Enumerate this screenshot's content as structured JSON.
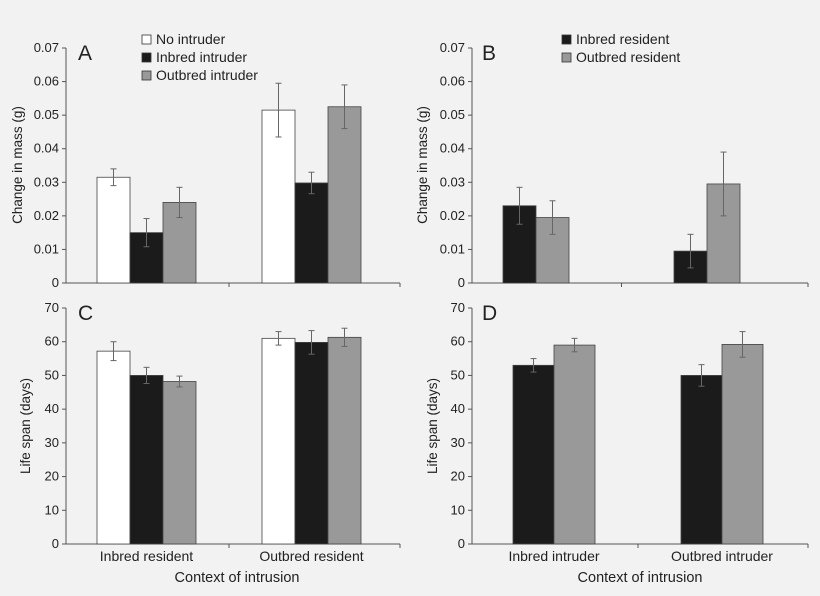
{
  "colors": {
    "background": "#f2f2f2",
    "no_intruder": "#ffffff",
    "inbred": "#1b1b1b",
    "outbred": "#999999",
    "axis": "#555555",
    "error_bar": "#666666"
  },
  "chart_data": [
    {
      "id": "A",
      "type": "bar",
      "panel_label": "A",
      "ylabel": "Change in mass (g)",
      "xlabel": "",
      "ylim": [
        0,
        0.07
      ],
      "yticks": [
        "0",
        "0.01",
        "0.02",
        "0.03",
        "0.04",
        "0.05",
        "0.06",
        "0.07"
      ],
      "categories": [
        "Inbred resident",
        "Outbred resident"
      ],
      "show_category_labels": false,
      "legend_position": "top-center",
      "series": [
        {
          "name": "No intruder",
          "color_key": "no_intruder",
          "values": [
            0.0315,
            0.0515
          ],
          "errors": [
            0.0025,
            0.008
          ]
        },
        {
          "name": "Inbred intruder",
          "color_key": "inbred",
          "values": [
            0.015,
            0.0298
          ],
          "errors": [
            0.0042,
            0.0032
          ]
        },
        {
          "name": "Outbred intruder",
          "color_key": "outbred",
          "values": [
            0.024,
            0.0525
          ],
          "errors": [
            0.0045,
            0.0065
          ]
        }
      ]
    },
    {
      "id": "B",
      "type": "bar",
      "panel_label": "B",
      "ylabel": "Change in mass (g)",
      "xlabel": "",
      "ylim": [
        0,
        0.07
      ],
      "yticks": [
        "0",
        "0.01",
        "0.02",
        "0.03",
        "0.04",
        "0.05",
        "0.06",
        "0.07"
      ],
      "categories": [
        "Inbred intruder",
        "Outbred intruder"
      ],
      "show_category_labels": false,
      "legend_position": "top-center",
      "series": [
        {
          "name": "Inbred resident",
          "color_key": "inbred",
          "values": [
            0.023,
            0.0095
          ],
          "errors": [
            0.0055,
            0.005
          ]
        },
        {
          "name": "Outbred resident",
          "color_key": "outbred",
          "values": [
            0.0195,
            0.0295
          ],
          "errors": [
            0.005,
            0.0095
          ]
        }
      ]
    },
    {
      "id": "C",
      "type": "bar",
      "panel_label": "C",
      "ylabel": "Life span (days)",
      "xlabel": "Context of intrusion",
      "ylim": [
        0,
        70
      ],
      "yticks": [
        "0",
        "10",
        "20",
        "30",
        "40",
        "50",
        "60",
        "70"
      ],
      "categories": [
        "Inbred resident",
        "Outbred resident"
      ],
      "show_category_labels": true,
      "series": [
        {
          "name": "No intruder",
          "color_key": "no_intruder",
          "values": [
            57.2,
            61
          ],
          "errors": [
            2.8,
            2
          ]
        },
        {
          "name": "Inbred intruder",
          "color_key": "inbred",
          "values": [
            50,
            59.8
          ],
          "errors": [
            2.4,
            3.5
          ]
        },
        {
          "name": "Outbred intruder",
          "color_key": "outbred",
          "values": [
            48.2,
            61.3
          ],
          "errors": [
            1.6,
            2.7
          ]
        }
      ]
    },
    {
      "id": "D",
      "type": "bar",
      "panel_label": "D",
      "ylabel": "Life span (days)",
      "xlabel": "Context of intrusion",
      "ylim": [
        0,
        70
      ],
      "yticks": [
        "0",
        "10",
        "20",
        "30",
        "40",
        "50",
        "60",
        "70"
      ],
      "categories": [
        "Inbred intruder",
        "Outbred intruder"
      ],
      "show_category_labels": true,
      "series": [
        {
          "name": "Inbred resident",
          "color_key": "inbred",
          "values": [
            53,
            50
          ],
          "errors": [
            2,
            3.2
          ]
        },
        {
          "name": "Outbred resident",
          "color_key": "outbred",
          "values": [
            59,
            59.2
          ],
          "errors": [
            2,
            3.8
          ]
        }
      ]
    }
  ]
}
